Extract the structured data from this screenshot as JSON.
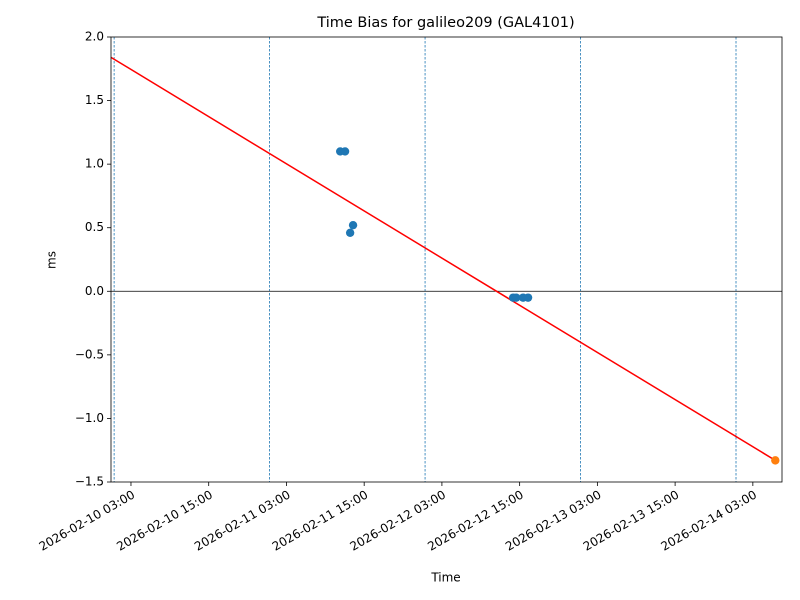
{
  "chart_data": {
    "type": "scatter",
    "title": "Time Bias for galileo209 (GAL4101)",
    "x_label": "Time",
    "y_label": "ms",
    "xlim": [
      "2026-02-09 23:55",
      "2026-02-14 07:30"
    ],
    "xticks": [
      "2026-02-10 03:00",
      "2026-02-10 15:00",
      "2026-02-11 03:00",
      "2026-02-11 15:00",
      "2026-02-12 03:00",
      "2026-02-12 15:00",
      "2026-02-13 03:00",
      "2026-02-13 15:00",
      "2026-02-14 03:00"
    ],
    "ylim": [
      -1.5,
      2
    ],
    "yticks": [
      {
        "value": -1.5,
        "label": "−1.5"
      },
      {
        "value": -1,
        "label": "−1.0"
      },
      {
        "value": -0.5,
        "label": "−0.5"
      },
      {
        "value": 0,
        "label": "0.0"
      },
      0.5,
      {
        "value": 1,
        "label": "1.0"
      },
      1.5,
      {
        "value": 2,
        "label": "2.0"
      }
    ],
    "vlines": [
      "2026-02-10 00:24",
      "2026-02-11 00:24",
      "2026-02-12 00:24",
      "2026-02-13 00:24",
      "2026-02-14 00:24"
    ],
    "vline_color": "#1f77b4",
    "hline": 0,
    "hline_color": "#000000",
    "series": [
      {
        "type": "scatter",
        "color": "#1f77b4",
        "x": [
          "2026-02-11 11:18",
          "2026-02-11 12:03",
          "2026-02-11 12:50",
          "2026-02-11 13:17",
          "2026-02-12 14:00",
          "2026-02-12 14:28",
          "2026-02-12 15:32",
          "2026-02-12 16:18"
        ],
        "values": [
          1.1,
          1.1,
          0.46,
          0.52,
          -0.05,
          -0.05,
          -0.05,
          -0.05
        ]
      },
      {
        "type": "scatter",
        "color": "#ff7f0e",
        "x": [
          "2026-02-14 06:28"
        ],
        "values": [
          -1.33
        ]
      },
      {
        "type": "line",
        "color": "#ff0000",
        "x": [
          "2026-02-09 23:55",
          "2026-02-14 06:28"
        ],
        "values": [
          1.84,
          -1.33
        ]
      }
    ]
  }
}
